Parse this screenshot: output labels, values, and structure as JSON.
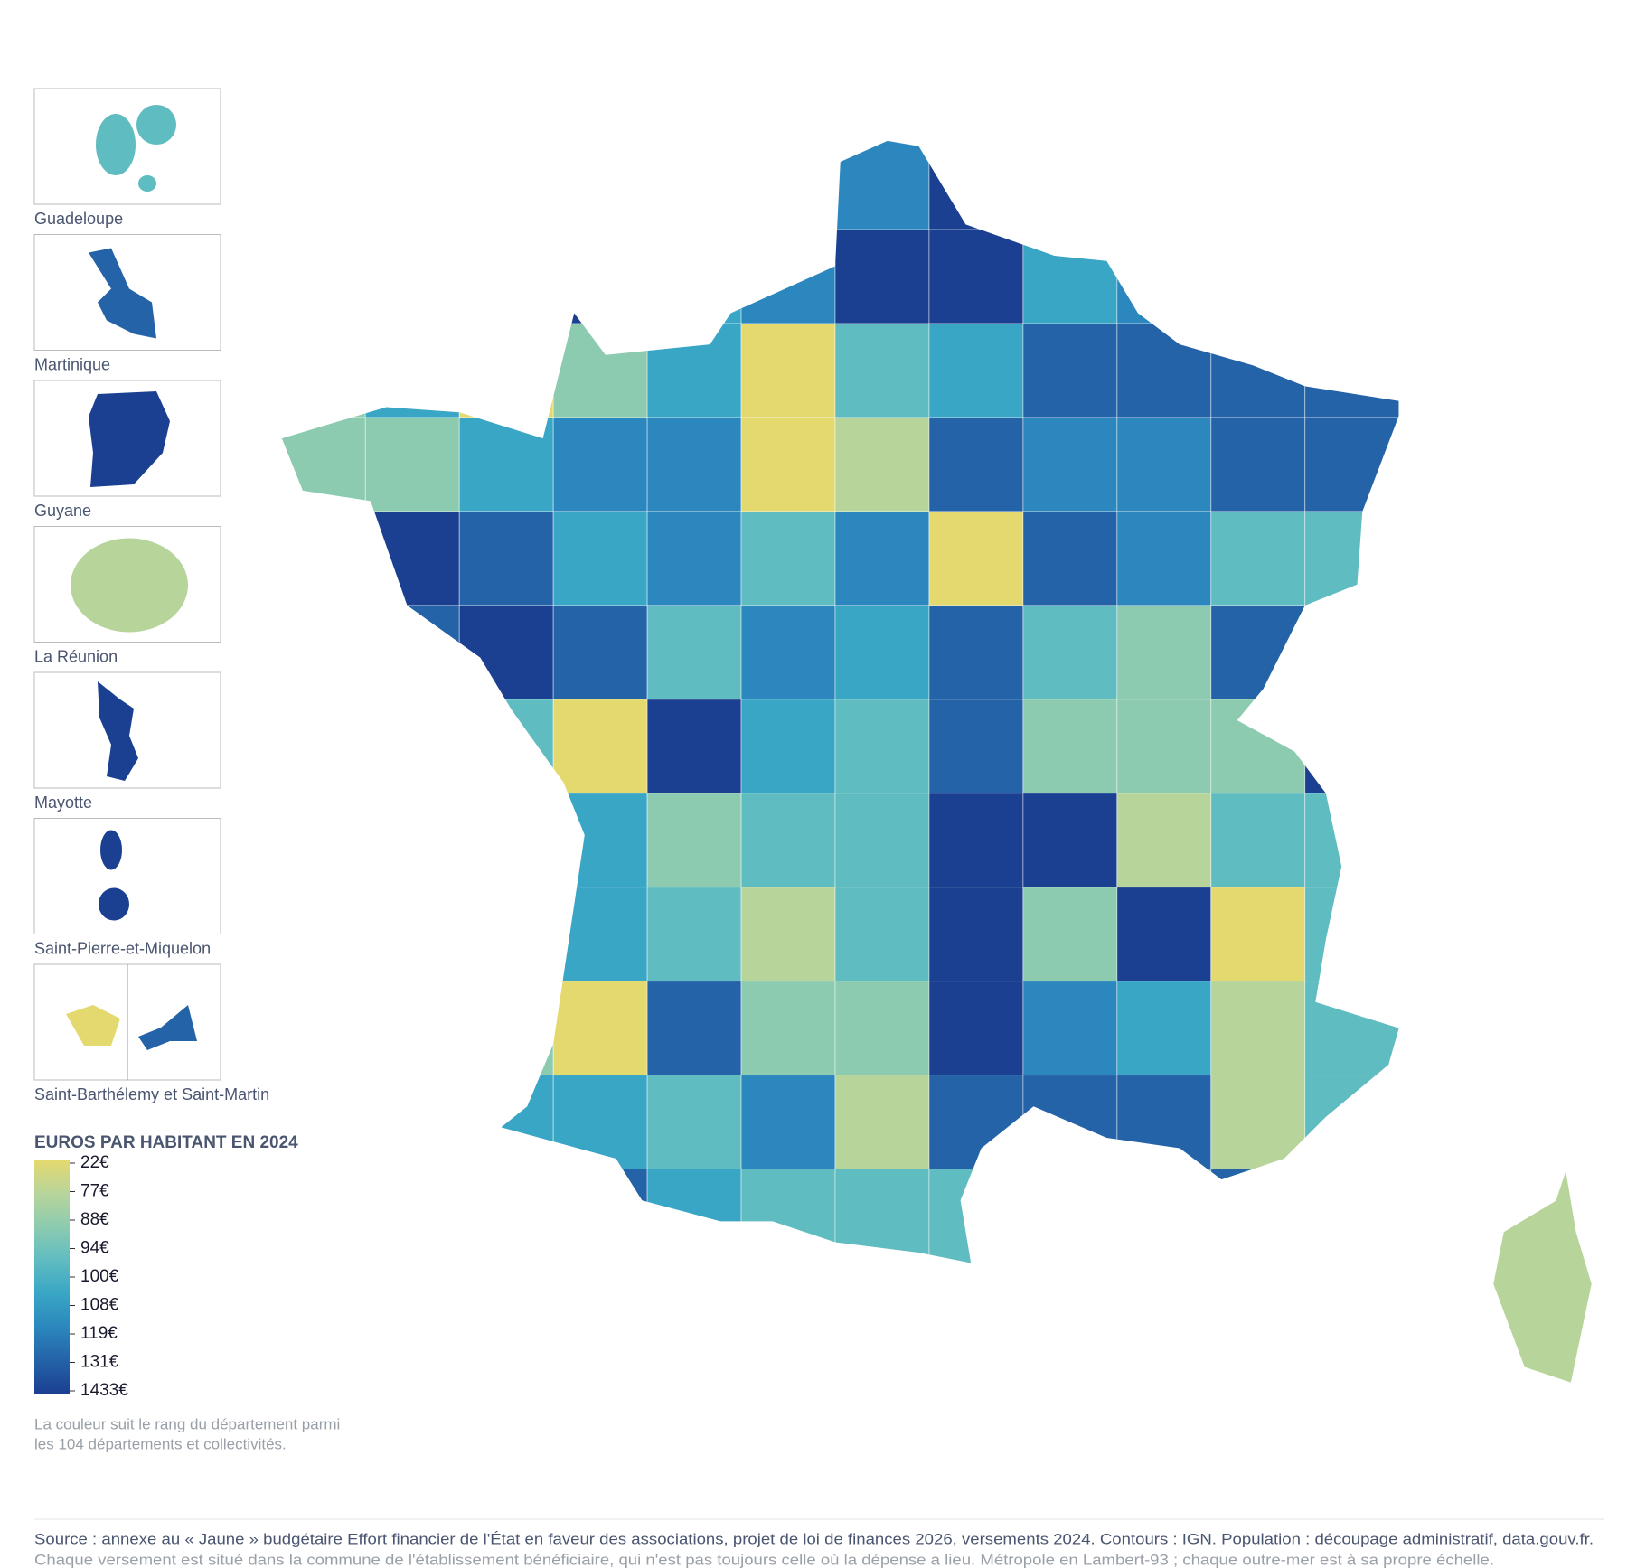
{
  "insets": [
    {
      "label": "Guadeloupe"
    },
    {
      "label": "Martinique"
    },
    {
      "label": "Guyane"
    },
    {
      "label": "La Réunion"
    },
    {
      "label": "Mayotte"
    },
    {
      "label": "Saint-Pierre-et-Miquelon"
    },
    {
      "label": "Saint-Barthélemy et Saint-Martin"
    }
  ],
  "legend": {
    "title": "EUROS PAR HABITANT EN 2024",
    "colors": [
      "#e4d96f",
      "#b7d59b",
      "#8ccbb0",
      "#5fbcc1",
      "#39a6c5",
      "#2b87bd",
      "#2463a8",
      "#1b3f91"
    ],
    "ticks": [
      {
        "value": 22,
        "label": "22€"
      },
      {
        "value": 77,
        "label": "77€"
      },
      {
        "value": 88,
        "label": "88€"
      },
      {
        "value": 94,
        "label": "94€"
      },
      {
        "value": 100,
        "label": "100€"
      },
      {
        "value": 108,
        "label": "108€"
      },
      {
        "value": 119,
        "label": "119€"
      },
      {
        "value": 131,
        "label": "131€"
      },
      {
        "value": 1433,
        "label": "1433€"
      }
    ],
    "note": [
      "La couleur suit le rang du département parmi",
      "les 104 départements et collectivités."
    ]
  },
  "source": [
    "Source : annexe au « Jaune » budgétaire Effort financier de l'État en faveur des associations, projet de loi de finances 2026, versements 2024. Contours : IGN. Population : découpage administratif, data.gouv.fr.",
    "Chaque versement est situé dans la commune de l'établissement bénéficiaire, qui n'est pas toujours celle où la dépense a lieu. Métropole en Lambert-93 ; chaque outre-mer est à sa propre échelle."
  ]
}
